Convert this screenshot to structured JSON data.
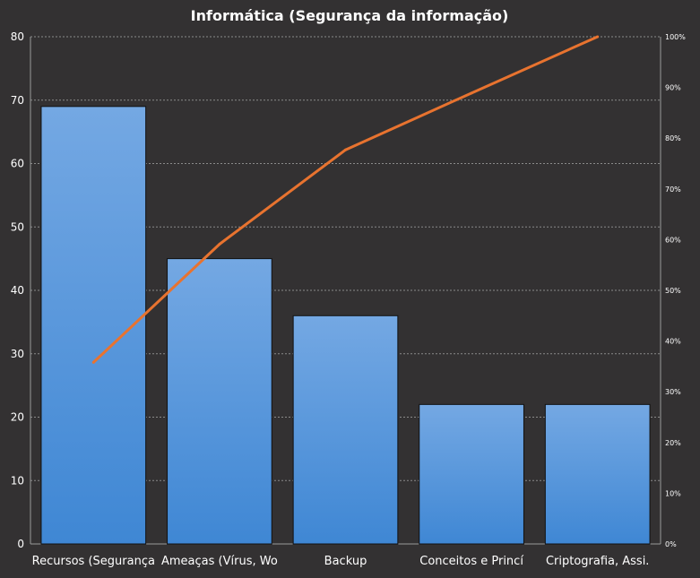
{
  "chart_data": {
    "type": "bar",
    "title": "Informática (Segurança da informação)",
    "categories": [
      "Recursos (Segurança",
      "Ameaças (Vírus, Wo",
      "Backup",
      "Conceitos e Princí",
      "Criptografia, Assi."
    ],
    "series": [
      {
        "type": "bar",
        "axis": "left",
        "values": [
          69,
          45,
          36,
          22,
          22
        ]
      },
      {
        "type": "line",
        "axis": "right",
        "values": [
          35.8,
          59.1,
          77.7,
          88.9,
          100
        ]
      }
    ],
    "ylim": [
      0,
      80
    ],
    "yticks": [
      "0",
      "10",
      "20",
      "30",
      "40",
      "50",
      "60",
      "70",
      "80"
    ],
    "y2lim": [
      0,
      100
    ],
    "y2ticks": [
      "0%",
      "10%",
      "20%",
      "30%",
      "40%",
      "50%",
      "60%",
      "70%",
      "80%",
      "90%",
      "100%"
    ],
    "grid": true,
    "colors": {
      "background": "#333132",
      "bar": "#5a9be0",
      "line": "#e8732f",
      "grid": "#8a8a8a",
      "text": "#ffffff"
    }
  }
}
